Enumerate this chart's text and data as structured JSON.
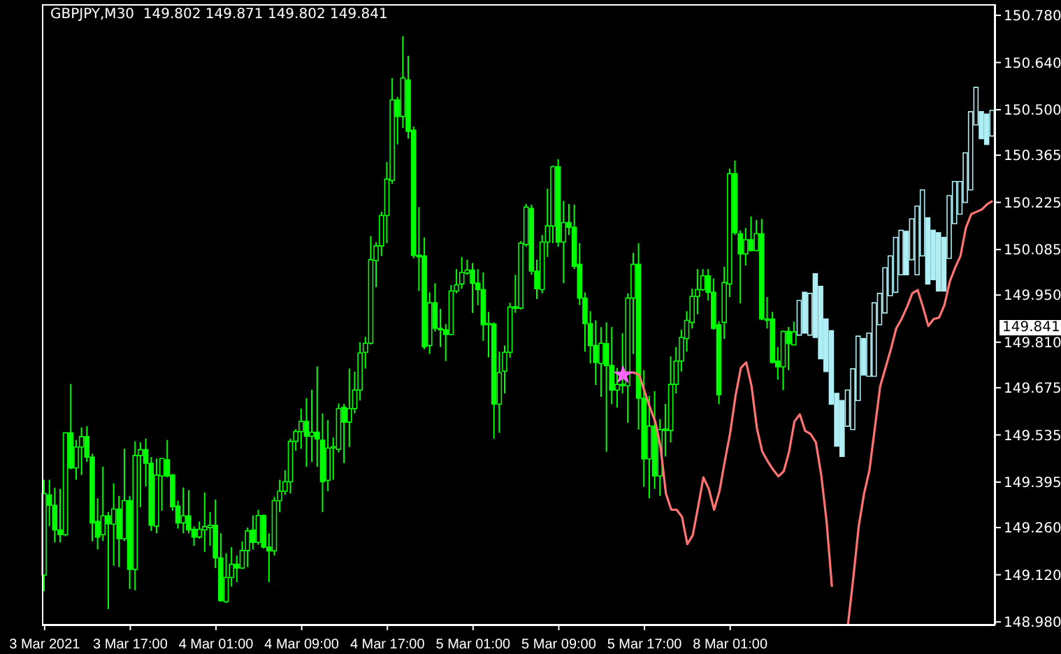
{
  "chart_data": {
    "type": "candlestick",
    "title": "GBPJPY,M30  149.802 149.871 149.802 149.841",
    "categories": [
      "3 Mar 2021",
      null,
      null,
      null,
      null,
      null,
      null,
      null,
      null,
      null,
      null,
      null,
      null,
      null,
      null,
      null,
      "3 Mar 17:00",
      null,
      null,
      null,
      null,
      null,
      null,
      null,
      null,
      null,
      null,
      null,
      null,
      null,
      null,
      null,
      "4 Mar 01:00",
      null,
      null,
      null,
      null,
      null,
      null,
      null,
      null,
      null,
      null,
      null,
      null,
      null,
      null,
      null,
      "4 Mar 09:00",
      null,
      null,
      null,
      null,
      null,
      null,
      null,
      null,
      null,
      null,
      null,
      null,
      null,
      null,
      null,
      "4 Mar 17:00",
      null,
      null,
      null,
      null,
      null,
      null,
      null,
      null,
      null,
      null,
      null,
      null,
      null,
      null,
      null,
      "5 Mar 01:00",
      null,
      null,
      null,
      null,
      null,
      null,
      null,
      null,
      null,
      null,
      null,
      null,
      null,
      null,
      null,
      "5 Mar 09:00",
      null,
      null,
      null,
      null,
      null,
      null,
      null,
      null,
      null,
      null,
      null,
      null,
      null,
      null,
      null,
      "5 Mar 17:00",
      null,
      null,
      null,
      null,
      null,
      null,
      null,
      null,
      null,
      null,
      null,
      null,
      null,
      null,
      null,
      "8 Mar 01:00",
      null,
      null,
      null,
      null,
      null,
      null,
      null,
      null,
      null,
      null,
      null,
      null,
      null,
      null,
      null,
      null,
      null,
      null,
      null,
      null,
      null,
      null,
      null,
      null,
      null,
      null,
      null,
      null,
      null,
      null,
      null,
      null,
      null,
      null,
      null,
      null,
      null,
      null,
      null,
      null,
      null,
      null,
      null,
      null,
      null,
      null,
      null,
      null,
      null
    ],
    "ylim": [
      148.972,
      150.813
    ],
    "yticks": [
      {
        "value": 150.78,
        "label": "150.780"
      },
      {
        "value": 150.64,
        "label": "150.640"
      },
      {
        "value": 150.5,
        "label": "150.500"
      },
      150.365,
      150.225,
      150.085,
      {
        "value": 149.95,
        "label": "149.950"
      },
      {
        "value": 149.81,
        "label": "149.810"
      },
      149.675,
      149.535,
      149.395,
      {
        "value": 149.26,
        "label": "149.260"
      },
      {
        "value": 149.12,
        "label": "149.120"
      },
      {
        "value": 148.98,
        "label": "148.980"
      }
    ],
    "annotations": [
      "149.841"
    ],
    "series": [
      {
        "type": "candlestick",
        "color": "#00ff00",
        "ohlc": [
          [
            149.119,
            149.402,
            149.071,
            149.361
          ],
          [
            149.357,
            149.402,
            149.264,
            149.326
          ],
          [
            149.326,
            149.378,
            149.216,
            149.253
          ],
          [
            149.253,
            149.375,
            149.216,
            149.239
          ],
          [
            149.239,
            149.543,
            149.234,
            149.541
          ],
          [
            149.541,
            149.686,
            149.433,
            149.437
          ],
          [
            149.437,
            149.52,
            149.402,
            149.499
          ],
          [
            149.499,
            149.557,
            149.416,
            149.53
          ],
          [
            149.53,
            149.561,
            149.455,
            149.469
          ],
          [
            149.469,
            149.479,
            149.219,
            149.274
          ],
          [
            149.278,
            149.347,
            149.195,
            149.232
          ],
          [
            149.239,
            149.441,
            149.22,
            149.295
          ],
          [
            149.295,
            149.306,
            149.018,
            149.271
          ],
          [
            149.27,
            149.391,
            149.147,
            149.315
          ],
          [
            149.315,
            149.354,
            149.143,
            149.227
          ],
          [
            149.227,
            149.494,
            149.22,
            149.34
          ],
          [
            149.34,
            149.354,
            149.078,
            149.136
          ],
          [
            149.136,
            149.516,
            149.074,
            149.474
          ],
          [
            149.474,
            149.513,
            149.32,
            149.491
          ],
          [
            149.491,
            149.524,
            149.382,
            149.451
          ],
          [
            149.451,
            149.469,
            149.25,
            149.267
          ],
          [
            149.264,
            149.465,
            149.243,
            149.416
          ],
          [
            149.413,
            149.465,
            149.31,
            149.465
          ],
          [
            149.461,
            149.52,
            149.409,
            149.413
          ],
          [
            149.416,
            149.419,
            149.31,
            149.322
          ],
          [
            149.324,
            149.34,
            149.257,
            149.274
          ],
          [
            149.274,
            149.379,
            149.243,
            149.295
          ],
          [
            149.295,
            149.371,
            149.243,
            149.253
          ],
          [
            149.255,
            149.264,
            149.206,
            149.232
          ],
          [
            149.232,
            149.278,
            149.227,
            149.255
          ],
          [
            149.253,
            149.364,
            149.188,
            149.263
          ],
          [
            149.26,
            149.306,
            149.206,
            149.267
          ],
          [
            149.267,
            149.343,
            149.14,
            149.17
          ],
          [
            149.17,
            149.243,
            149.04,
            149.043
          ],
          [
            149.04,
            149.184,
            149.036,
            149.112
          ],
          [
            149.112,
            149.202,
            149.085,
            149.151
          ],
          [
            149.151,
            149.177,
            149.098,
            149.14
          ],
          [
            149.14,
            149.219,
            149.137,
            149.192
          ],
          [
            149.192,
            149.26,
            149.143,
            149.25
          ],
          [
            149.253,
            149.296,
            149.195,
            149.216
          ],
          [
            149.216,
            149.313,
            149.209,
            149.296
          ],
          [
            149.296,
            149.299,
            149.198,
            149.202
          ],
          [
            149.202,
            149.243,
            149.098,
            149.191
          ],
          [
            149.191,
            149.351,
            149.177,
            149.34
          ],
          [
            149.34,
            149.402,
            149.306,
            149.368
          ],
          [
            149.368,
            149.43,
            149.357,
            149.396
          ],
          [
            149.396,
            149.524,
            149.361,
            149.516
          ],
          [
            149.516,
            149.552,
            149.488,
            149.545
          ],
          [
            149.545,
            149.613,
            149.494,
            149.575
          ],
          [
            149.575,
            149.644,
            149.44,
            149.531
          ],
          [
            149.531,
            149.669,
            149.455,
            149.543
          ],
          [
            149.543,
            149.738,
            149.44,
            149.523
          ],
          [
            149.519,
            149.599,
            149.306,
            149.396
          ],
          [
            149.4,
            149.579,
            149.368,
            149.496
          ],
          [
            149.496,
            149.527,
            149.402,
            149.499
          ],
          [
            149.492,
            149.628,
            149.483,
            149.613
          ],
          [
            149.617,
            149.627,
            149.451,
            149.573
          ],
          [
            149.573,
            149.732,
            149.499,
            149.613
          ],
          [
            149.613,
            149.723,
            149.599,
            149.668
          ],
          [
            149.668,
            149.81,
            149.637,
            149.778
          ],
          [
            149.78,
            149.826,
            149.732,
            149.807
          ],
          [
            149.807,
            150.125,
            149.803,
            150.055
          ],
          [
            150.052,
            150.107,
            149.973,
            150.096
          ],
          [
            150.096,
            150.197,
            150.066,
            150.186
          ],
          [
            150.186,
            150.345,
            150.104,
            150.294
          ],
          [
            150.29,
            150.594,
            150.28,
            150.529
          ],
          [
            150.529,
            150.538,
            150.397,
            150.48
          ],
          [
            150.48,
            150.718,
            150.446,
            150.594
          ],
          [
            150.588,
            150.66,
            150.414,
            150.436
          ],
          [
            150.439,
            150.45,
            150.059,
            150.068
          ],
          [
            150.068,
            150.211,
            149.962,
            150.063
          ],
          [
            150.066,
            150.121,
            149.789,
            149.796
          ],
          [
            149.8,
            149.958,
            149.775,
            149.927
          ],
          [
            149.927,
            149.985,
            149.842,
            149.851
          ],
          [
            149.851,
            149.909,
            149.796,
            149.847
          ],
          [
            149.847,
            149.864,
            149.754,
            149.833
          ],
          [
            149.833,
            149.98,
            149.831,
            149.962
          ],
          [
            149.962,
            150.027,
            149.955,
            149.98
          ],
          [
            149.983,
            150.063,
            149.969,
            150.017
          ],
          [
            150.015,
            150.055,
            150.01,
            150.024
          ],
          [
            150.024,
            150.045,
            149.897,
            149.985
          ],
          [
            149.985,
            150.027,
            149.92,
            149.966
          ],
          [
            149.966,
            150.017,
            149.814,
            149.862
          ],
          [
            149.862,
            149.9,
            149.765,
            149.864
          ],
          [
            149.864,
            149.869,
            149.524,
            149.626
          ],
          [
            149.626,
            149.782,
            149.541,
            149.72
          ],
          [
            149.724,
            149.8,
            149.658,
            149.78
          ],
          [
            149.78,
            149.927,
            149.764,
            149.914
          ],
          [
            149.914,
            150.01,
            149.897,
            149.911
          ],
          [
            149.911,
            150.11,
            149.907,
            150.104
          ],
          [
            150.1,
            150.22,
            150.093,
            150.211
          ],
          [
            150.207,
            150.218,
            150.01,
            150.021
          ],
          [
            150.021,
            150.055,
            149.938,
            149.969
          ],
          [
            149.966,
            150.128,
            149.955,
            150.107
          ],
          [
            150.107,
            150.266,
            150.063,
            150.155
          ],
          [
            150.155,
            150.334,
            150.104,
            150.331
          ],
          [
            150.331,
            150.353,
            150.093,
            150.107
          ],
          [
            150.107,
            150.229,
            149.985,
            150.165
          ],
          [
            150.165,
            150.22,
            150.128,
            150.151
          ],
          [
            150.151,
            150.218,
            150.027,
            150.035
          ],
          [
            150.041,
            150.104,
            149.92,
            149.941
          ],
          [
            149.941,
            149.958,
            149.782,
            149.865
          ],
          [
            149.865,
            149.902,
            149.747,
            149.8
          ],
          [
            149.8,
            149.875,
            149.683,
            149.75
          ],
          [
            149.747,
            149.855,
            149.648,
            149.807
          ],
          [
            149.806,
            149.869,
            149.485,
            149.741
          ],
          [
            149.741,
            149.855,
            149.626,
            149.668
          ],
          [
            149.668,
            149.734,
            149.616,
            149.685
          ],
          [
            149.685,
            149.837,
            149.658,
            149.681
          ],
          [
            149.681,
            149.955,
            149.571,
            149.941
          ],
          [
            149.941,
            150.075,
            149.775,
            150.041
          ],
          [
            150.041,
            150.104,
            149.551,
            149.644
          ],
          [
            149.644,
            149.727,
            149.381,
            149.464
          ],
          [
            149.464,
            149.651,
            149.347,
            149.561
          ],
          [
            149.561,
            149.665,
            149.375,
            149.413
          ],
          [
            149.413,
            149.582,
            149.354,
            149.551
          ],
          [
            149.551,
            149.627,
            149.471,
            149.548
          ],
          [
            149.548,
            149.768,
            149.513,
            149.685
          ],
          [
            149.685,
            149.796,
            149.658,
            149.754
          ],
          [
            149.754,
            149.847,
            149.723,
            149.824
          ],
          [
            149.821,
            149.902,
            149.782,
            149.875
          ],
          [
            149.869,
            149.969,
            149.851,
            149.946
          ],
          [
            149.946,
            150.027,
            149.893,
            149.966
          ],
          [
            149.966,
            150.027,
            149.962,
            150.007
          ],
          [
            150.007,
            150.027,
            149.934,
            149.958
          ],
          [
            149.958,
            149.999,
            149.847,
            149.851
          ],
          [
            149.862,
            149.872,
            149.626,
            149.654
          ],
          [
            149.869,
            150.034,
            149.82,
            149.987
          ],
          [
            149.983,
            150.325,
            149.944,
            150.31
          ],
          [
            150.31,
            150.349,
            150.128,
            150.135
          ],
          [
            150.132,
            150.142,
            149.925,
            150.072
          ],
          [
            150.072,
            150.149,
            150.038,
            150.114
          ],
          [
            150.114,
            150.183,
            150.08,
            150.082
          ],
          [
            150.082,
            150.173,
            150.08,
            150.132
          ],
          [
            150.132,
            150.176,
            149.875,
            149.879
          ],
          [
            149.879,
            149.944,
            149.851,
            149.875
          ],
          [
            149.879,
            149.9,
            149.747,
            149.75
          ],
          [
            149.754,
            149.796,
            149.699,
            149.737
          ],
          [
            149.737,
            149.844,
            149.668,
            149.842
          ],
          [
            149.842,
            149.855,
            149.727,
            149.806
          ],
          [
            149.802,
            149.871,
            149.802,
            149.841
          ],
          null,
          null,
          null,
          null,
          null,
          null,
          null,
          null,
          null,
          null,
          null,
          null,
          null,
          null,
          null,
          null,
          null,
          null,
          null,
          null,
          null,
          null,
          null,
          null,
          null,
          null,
          null,
          null,
          null,
          null,
          null,
          null,
          null,
          null,
          null,
          null,
          null
        ]
      },
      {
        "type": "candlestick",
        "color": "#aeeef4",
        "ohlc": [
          null,
          null,
          null,
          null,
          null,
          null,
          null,
          null,
          null,
          null,
          null,
          null,
          null,
          null,
          null,
          null,
          null,
          null,
          null,
          null,
          null,
          null,
          null,
          null,
          null,
          null,
          null,
          null,
          null,
          null,
          null,
          null,
          null,
          null,
          null,
          null,
          null,
          null,
          null,
          null,
          null,
          null,
          null,
          null,
          null,
          null,
          null,
          null,
          null,
          null,
          null,
          null,
          null,
          null,
          null,
          null,
          null,
          null,
          null,
          null,
          null,
          null,
          null,
          null,
          null,
          null,
          null,
          null,
          null,
          null,
          null,
          null,
          null,
          null,
          null,
          null,
          null,
          null,
          null,
          null,
          null,
          null,
          null,
          null,
          null,
          null,
          null,
          null,
          null,
          null,
          null,
          null,
          null,
          null,
          null,
          null,
          null,
          null,
          null,
          null,
          null,
          null,
          null,
          null,
          null,
          null,
          null,
          null,
          null,
          null,
          null,
          null,
          null,
          null,
          null,
          null,
          null,
          null,
          null,
          null,
          null,
          null,
          null,
          null,
          null,
          null,
          null,
          null,
          null,
          null,
          null,
          null,
          null,
          null,
          null,
          null,
          null,
          null,
          null,
          null,
          null,
          [
            149.831,
            149.934,
            149.831,
            149.934
          ],
          [
            149.958,
            149.958,
            149.837,
            149.837
          ],
          [
            149.831,
            149.955,
            149.831,
            149.955
          ],
          [
            150.013,
            150.013,
            149.824,
            149.824
          ],
          [
            149.976,
            149.976,
            149.761,
            149.761
          ],
          [
            149.879,
            149.879,
            149.723,
            149.723
          ],
          [
            149.844,
            149.844,
            149.626,
            149.626
          ],
          [
            149.658,
            149.658,
            149.502,
            149.502
          ],
          [
            149.637,
            149.637,
            149.471,
            149.471
          ],
          [
            149.561,
            149.668,
            149.561,
            149.668
          ],
          [
            149.551,
            149.731,
            149.551,
            149.731
          ],
          [
            149.637,
            149.828,
            149.637,
            149.828
          ],
          [
            149.821,
            149.821,
            149.713,
            149.713
          ],
          [
            149.709,
            149.837,
            149.709,
            149.837
          ],
          [
            149.709,
            149.927,
            149.709,
            149.927
          ],
          [
            149.862,
            149.955,
            149.862,
            149.955
          ],
          [
            149.897,
            150.031,
            149.897,
            150.031
          ],
          [
            149.948,
            150.066,
            149.948,
            150.066
          ],
          [
            149.958,
            150.121,
            149.958,
            150.121
          ],
          [
            150.01,
            150.142,
            150.01,
            150.142
          ],
          [
            150.139,
            150.139,
            150.01,
            150.01
          ],
          [
            150.055,
            150.176,
            150.055,
            150.176
          ],
          [
            150.01,
            150.214,
            150.01,
            150.214
          ],
          [
            150.066,
            150.262,
            150.066,
            150.262
          ],
          [
            150.179,
            150.179,
            149.983,
            149.983
          ],
          [
            150.142,
            150.142,
            149.996,
            149.996
          ],
          [
            150.135,
            150.135,
            149.962,
            149.962
          ],
          [
            150.121,
            150.121,
            149.962,
            149.962
          ],
          [
            150.059,
            150.245,
            150.059,
            150.245
          ],
          [
            150.162,
            150.287,
            150.162,
            150.287
          ],
          [
            150.19,
            150.287,
            150.19,
            150.287
          ],
          [
            150.225,
            150.372,
            150.225,
            150.372
          ],
          [
            150.262,
            150.494,
            150.262,
            150.494
          ],
          [
            150.455,
            150.566,
            150.455,
            150.566
          ],
          [
            150.494,
            150.494,
            150.414,
            150.414
          ],
          [
            150.487,
            150.487,
            150.397,
            150.397
          ],
          [
            150.422,
            150.498,
            150.422,
            150.498
          ]
        ]
      },
      {
        "type": "line",
        "color": "#ff7373",
        "values": [
          null,
          null,
          null,
          null,
          null,
          null,
          null,
          null,
          null,
          null,
          null,
          null,
          null,
          null,
          null,
          null,
          null,
          null,
          null,
          null,
          null,
          null,
          null,
          null,
          null,
          null,
          null,
          null,
          null,
          null,
          null,
          null,
          null,
          null,
          null,
          null,
          null,
          null,
          null,
          null,
          null,
          null,
          null,
          null,
          null,
          null,
          null,
          null,
          null,
          null,
          null,
          null,
          null,
          null,
          null,
          null,
          null,
          null,
          null,
          null,
          null,
          null,
          null,
          null,
          null,
          null,
          null,
          null,
          null,
          null,
          null,
          null,
          null,
          null,
          null,
          null,
          null,
          null,
          null,
          null,
          null,
          null,
          null,
          null,
          null,
          null,
          null,
          null,
          null,
          null,
          null,
          null,
          null,
          null,
          null,
          null,
          null,
          null,
          null,
          null,
          null,
          null,
          null,
          null,
          null,
          null,
          null,
          null,
          149.72,
          149.72,
          149.72,
          149.713,
          149.665,
          149.617,
          149.575,
          149.499,
          149.361,
          149.313,
          149.313,
          149.292,
          149.211,
          149.237,
          149.32,
          149.409,
          149.375,
          149.313,
          149.368,
          149.457,
          149.541,
          149.651,
          149.734,
          149.75,
          149.679,
          149.554,
          149.485,
          149.457,
          149.432,
          149.412,
          149.427,
          149.485,
          149.575,
          149.596,
          149.547,
          149.538,
          149.513,
          149.416,
          149.278,
          149.084,
          null,
          null,
          148.973,
          149.112,
          149.264,
          149.361,
          149.43,
          149.554,
          149.679,
          149.734,
          149.789,
          149.851,
          149.879,
          149.914,
          149.955,
          149.965,
          149.914,
          149.858,
          149.879,
          149.883,
          149.92,
          149.99,
          150.031,
          150.066,
          150.149,
          150.19,
          150.197,
          150.204,
          150.22,
          150.229
        ]
      },
      {
        "type": "scatter",
        "color": "#ff66ff",
        "marker": "star",
        "values": [
          null,
          null,
          null,
          null,
          null,
          null,
          null,
          null,
          null,
          null,
          null,
          null,
          null,
          null,
          null,
          null,
          null,
          null,
          null,
          null,
          null,
          null,
          null,
          null,
          null,
          null,
          null,
          null,
          null,
          null,
          null,
          null,
          null,
          null,
          null,
          null,
          null,
          null,
          null,
          null,
          null,
          null,
          null,
          null,
          null,
          null,
          null,
          null,
          null,
          null,
          null,
          null,
          null,
          null,
          null,
          null,
          null,
          null,
          null,
          null,
          null,
          null,
          null,
          null,
          null,
          null,
          null,
          null,
          null,
          null,
          null,
          null,
          null,
          null,
          null,
          null,
          null,
          null,
          null,
          null,
          null,
          null,
          null,
          null,
          null,
          null,
          null,
          null,
          null,
          null,
          null,
          null,
          null,
          null,
          null,
          null,
          null,
          null,
          null,
          null,
          null,
          null,
          null,
          null,
          null,
          null,
          null,
          null,
          149.713,
          null,
          null,
          null,
          null,
          null,
          null,
          null,
          null,
          null,
          null,
          null,
          null,
          null,
          null,
          null,
          null,
          null,
          null,
          null,
          null,
          null,
          null,
          null,
          null,
          null,
          null,
          null,
          null,
          null,
          null,
          null,
          null,
          null,
          null,
          null,
          null,
          null,
          null,
          null,
          null,
          null,
          null,
          null,
          null,
          null,
          null,
          null,
          null,
          null,
          null,
          null,
          null,
          null,
          null,
          null,
          null,
          null,
          null,
          null,
          null,
          null,
          null,
          null,
          null,
          null,
          null,
          null,
          null,
          null
        ]
      }
    ]
  }
}
